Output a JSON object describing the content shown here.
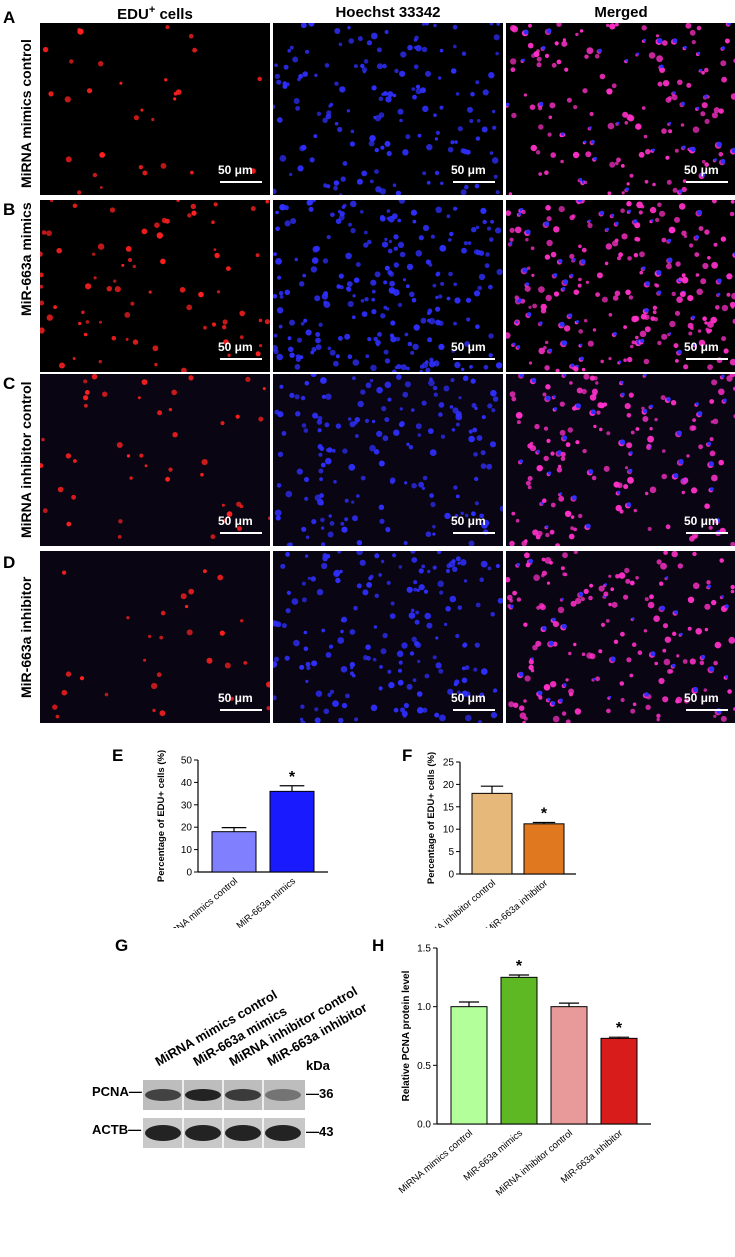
{
  "columns": {
    "edu_main": "EDU",
    "edu_sup": "+",
    "edu_tail": " cells",
    "hoechst": "Hoechst 33342",
    "merged": "Merged"
  },
  "rows": [
    {
      "letter": "A",
      "label": "MiRNA mimics control"
    },
    {
      "letter": "B",
      "label": "MiR-663a mimics"
    },
    {
      "letter": "C",
      "label": "MiRNA inhibitor control"
    },
    {
      "letter": "D",
      "label": "MiR-663a inhibitor"
    }
  ],
  "scale_bar_label": "50 μm",
  "panel_colors": {
    "edu": "#ff2020",
    "hoechst": "#2f2fff",
    "merged": "#ff30c8",
    "background": "#000000",
    "dim_background": "#0a0512"
  },
  "panel_letters": {
    "E": "E",
    "F": "F",
    "G": "G",
    "H": "H"
  },
  "blot": {
    "lanes": [
      "MiRNA mimics control",
      "MiR-663a mimics",
      "MiRNA inhibitor control",
      "MiR-663a inhibitor"
    ],
    "kda_label": "kDa",
    "rows": [
      {
        "name": "PCNA",
        "kda": "36"
      },
      {
        "name": "ACTB",
        "kda": "43"
      }
    ]
  },
  "chart_data": [
    {
      "id": "E",
      "type": "bar",
      "categories": [
        "MiRNA mimics control",
        "MiR-663a mimics"
      ],
      "values": [
        18,
        36
      ],
      "errors": [
        1.8,
        2.5
      ],
      "colors": [
        "#8080ff",
        "#1a1aff"
      ],
      "significance": [
        "",
        "*"
      ],
      "ylabel": "Percentage of EDU+ cells (%)",
      "ylim": [
        0,
        50
      ],
      "yticks": [
        0,
        10,
        20,
        30,
        40,
        50
      ]
    },
    {
      "id": "F",
      "type": "bar",
      "categories": [
        "MiRNA inhibitor control",
        "MiR-663a inhibitor"
      ],
      "values": [
        18,
        11.2
      ],
      "errors": [
        1.6,
        0.3
      ],
      "colors": [
        "#e6b87a",
        "#e07820"
      ],
      "significance": [
        "",
        "*"
      ],
      "ylabel": "Percentage of EDU+ cells (%)",
      "ylim": [
        0,
        25
      ],
      "yticks": [
        0,
        5,
        10,
        15,
        20,
        25
      ]
    },
    {
      "id": "H",
      "type": "bar",
      "categories": [
        "MiRNA mimics control",
        "MiR-663a mimics",
        "MiRNA inhibitor control",
        "MiR-663a inhibitor"
      ],
      "values": [
        1.0,
        1.25,
        1.0,
        0.73
      ],
      "errors": [
        0.04,
        0.02,
        0.03,
        0.01
      ],
      "colors": [
        "#b3ff99",
        "#5db824",
        "#e89a9a",
        "#d81c1c"
      ],
      "significance": [
        "",
        "*",
        "",
        "*"
      ],
      "ylabel": "Relative PCNA protein level",
      "ylim": [
        0,
        1.5
      ],
      "yticks": [
        0.0,
        0.5,
        1.0,
        1.5
      ]
    }
  ]
}
